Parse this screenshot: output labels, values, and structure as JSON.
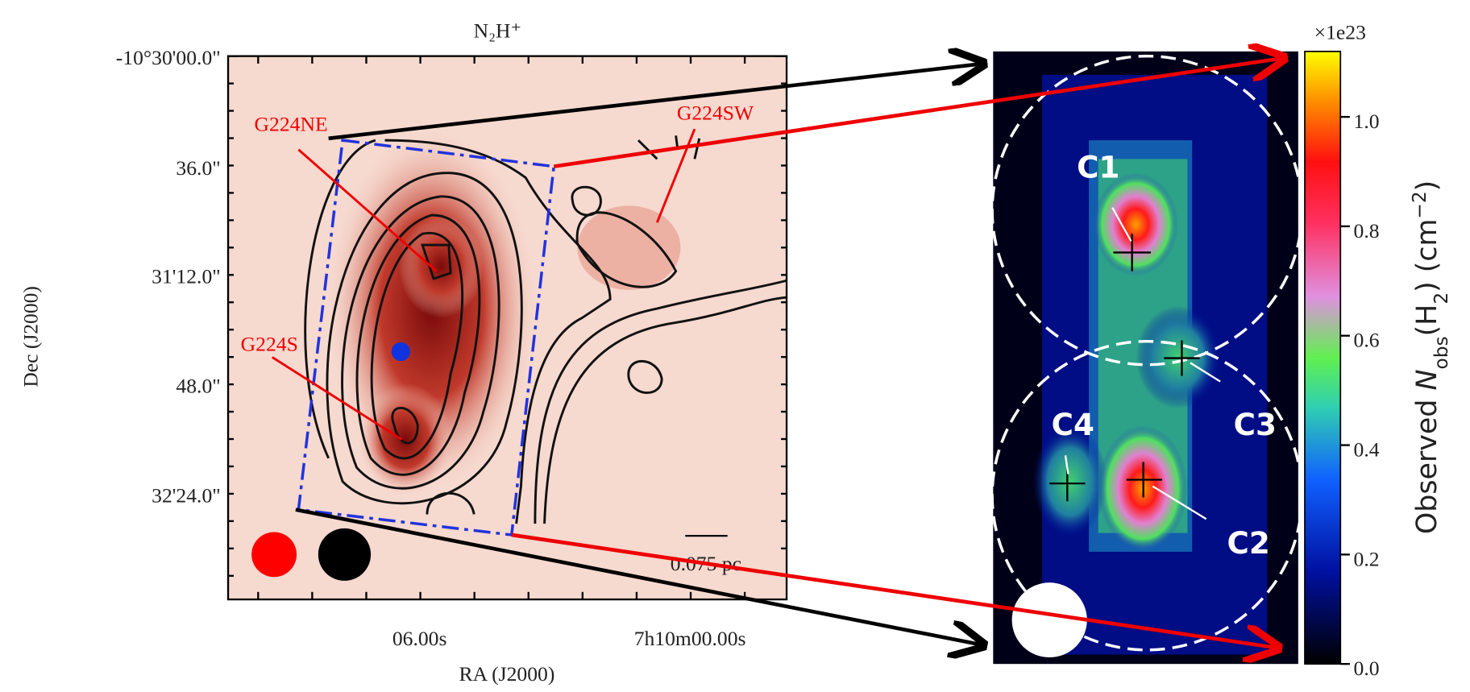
{
  "left_panel": {
    "title": "N₂H⁺",
    "y_axis_label": "Dec (J2000)",
    "x_axis_label": "RA (J2000)",
    "y_tick_labels": [
      "-10°30'00.0\"",
      "36.0\"",
      "31'12.0\"",
      "48.0\"",
      "32'24.0\""
    ],
    "x_tick_labels": [
      "06.00s",
      "7h10m00.00s"
    ],
    "annotations": [
      "G224NE",
      "G224SW",
      "G224S"
    ],
    "scale_bar": "0.075 pc"
  },
  "right_panel": {
    "cores": [
      "C1",
      "C2",
      "C3",
      "C4"
    ]
  },
  "colorbar": {
    "multiplier": "×1e23",
    "tick_labels": [
      "0.0",
      "0.2",
      "0.4",
      "0.6",
      "0.8",
      "1.0"
    ],
    "label_parts": [
      "Observed ",
      "N",
      "obs",
      "(H",
      "2",
      ") (cm",
      "−2",
      ")"
    ]
  }
}
